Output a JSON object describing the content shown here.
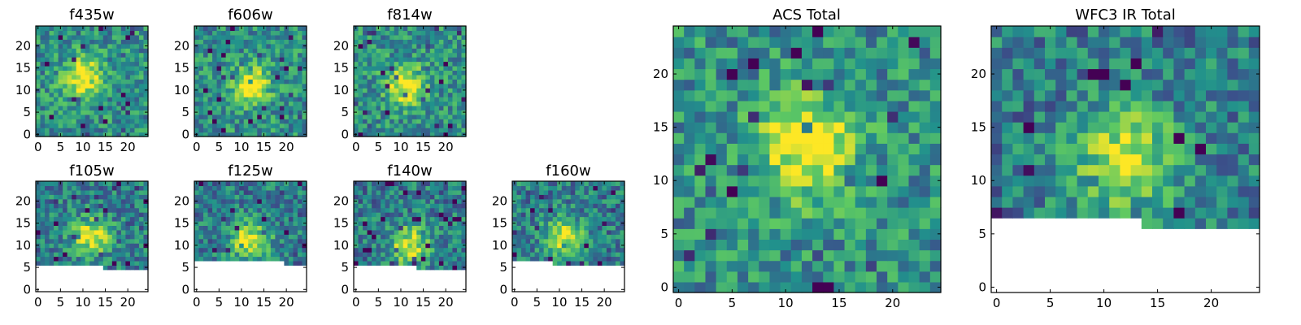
{
  "figure": {
    "panels": [
      {
        "id": "f435w",
        "title": "f435w",
        "kind": "small",
        "xticks": [
          0,
          5,
          10,
          15,
          20
        ],
        "yticks": [
          0,
          5,
          10,
          15,
          20
        ],
        "nx": 25,
        "ny": 25,
        "xmax": 24.5,
        "ymax": 24.5,
        "blank_profile": [],
        "peak": [
          10,
          13
        ],
        "seed": 11
      },
      {
        "id": "f606w",
        "title": "f606w",
        "kind": "small",
        "xticks": [
          0,
          5,
          10,
          15,
          20
        ],
        "yticks": [
          0,
          5,
          10,
          15,
          20
        ],
        "nx": 25,
        "ny": 25,
        "xmax": 24.5,
        "ymax": 24.5,
        "blank_profile": [],
        "peak": [
          12,
          11
        ],
        "seed": 23
      },
      {
        "id": "f814w",
        "title": "f814w",
        "kind": "small",
        "xticks": [
          0,
          5,
          10,
          15,
          20
        ],
        "yticks": [
          0,
          5,
          10,
          15,
          20
        ],
        "nx": 25,
        "ny": 25,
        "xmax": 24.5,
        "ymax": 24.5,
        "blank_profile": [],
        "peak": [
          11,
          11
        ],
        "seed": 37
      },
      {
        "id": "f105w",
        "title": "f105w",
        "kind": "small",
        "xticks": [
          0,
          5,
          10,
          15,
          20
        ],
        "yticks": [
          0,
          5,
          10,
          15,
          20
        ],
        "nx": 25,
        "ny": 25,
        "xmax": 24.5,
        "ymax": 24.5,
        "blank_profile": [
          [
            0,
            5
          ],
          [
            15,
            4
          ]
        ],
        "peak": [
          12,
          12
        ],
        "seed": 41
      },
      {
        "id": "f125w",
        "title": "f125w",
        "kind": "small",
        "xticks": [
          0,
          5,
          10,
          15,
          20
        ],
        "yticks": [
          0,
          5,
          10,
          15,
          20
        ],
        "nx": 25,
        "ny": 25,
        "xmax": 24.5,
        "ymax": 24.5,
        "blank_profile": [
          [
            0,
            6
          ],
          [
            20,
            5
          ]
        ],
        "peak": [
          12,
          11
        ],
        "seed": 53
      },
      {
        "id": "f140w",
        "title": "f140w",
        "kind": "small",
        "xticks": [
          0,
          5,
          10,
          15,
          20
        ],
        "yticks": [
          0,
          5,
          10,
          15,
          20
        ],
        "nx": 25,
        "ny": 25,
        "xmax": 24.5,
        "ymax": 24.5,
        "blank_profile": [
          [
            0,
            5
          ],
          [
            14,
            4
          ]
        ],
        "peak": [
          12,
          10
        ],
        "seed": 67
      },
      {
        "id": "f160w",
        "title": "f160w",
        "kind": "small",
        "xticks": [
          0,
          5,
          10,
          15,
          20
        ],
        "yticks": [
          0,
          5,
          10,
          15,
          20
        ],
        "nx": 25,
        "ny": 25,
        "xmax": 24.5,
        "ymax": 24.5,
        "blank_profile": [
          [
            0,
            6
          ],
          [
            9,
            5
          ]
        ],
        "peak": [
          11,
          12
        ],
        "seed": 79
      },
      {
        "id": "acs_total",
        "title": "ACS Total",
        "kind": "large",
        "xticks": [
          0,
          5,
          10,
          15,
          20
        ],
        "yticks": [
          0,
          5,
          10,
          15,
          20
        ],
        "nx": 25,
        "ny": 25,
        "xmax": 24.5,
        "ymax": 24.5,
        "blank_profile": [],
        "peak": [
          12,
          13
        ],
        "seed": 97
      },
      {
        "id": "wfc3_ir_total",
        "title": "WFC3 IR Total",
        "kind": "large",
        "xticks": [
          0,
          5,
          10,
          15,
          20
        ],
        "yticks": [
          0,
          5,
          10,
          15,
          20
        ],
        "nx": 25,
        "ny": 25,
        "xmax": 24.5,
        "ymax": 24.5,
        "blank_profile": [
          [
            0,
            6
          ],
          [
            14,
            5
          ]
        ],
        "peak": [
          12,
          12
        ],
        "seed": 113
      }
    ]
  },
  "colors": {
    "viridis": [
      "#440154",
      "#3b528b",
      "#21918c",
      "#5ec962",
      "#fde725"
    ],
    "axes": "#000000",
    "masked": "#ffffff"
  }
}
